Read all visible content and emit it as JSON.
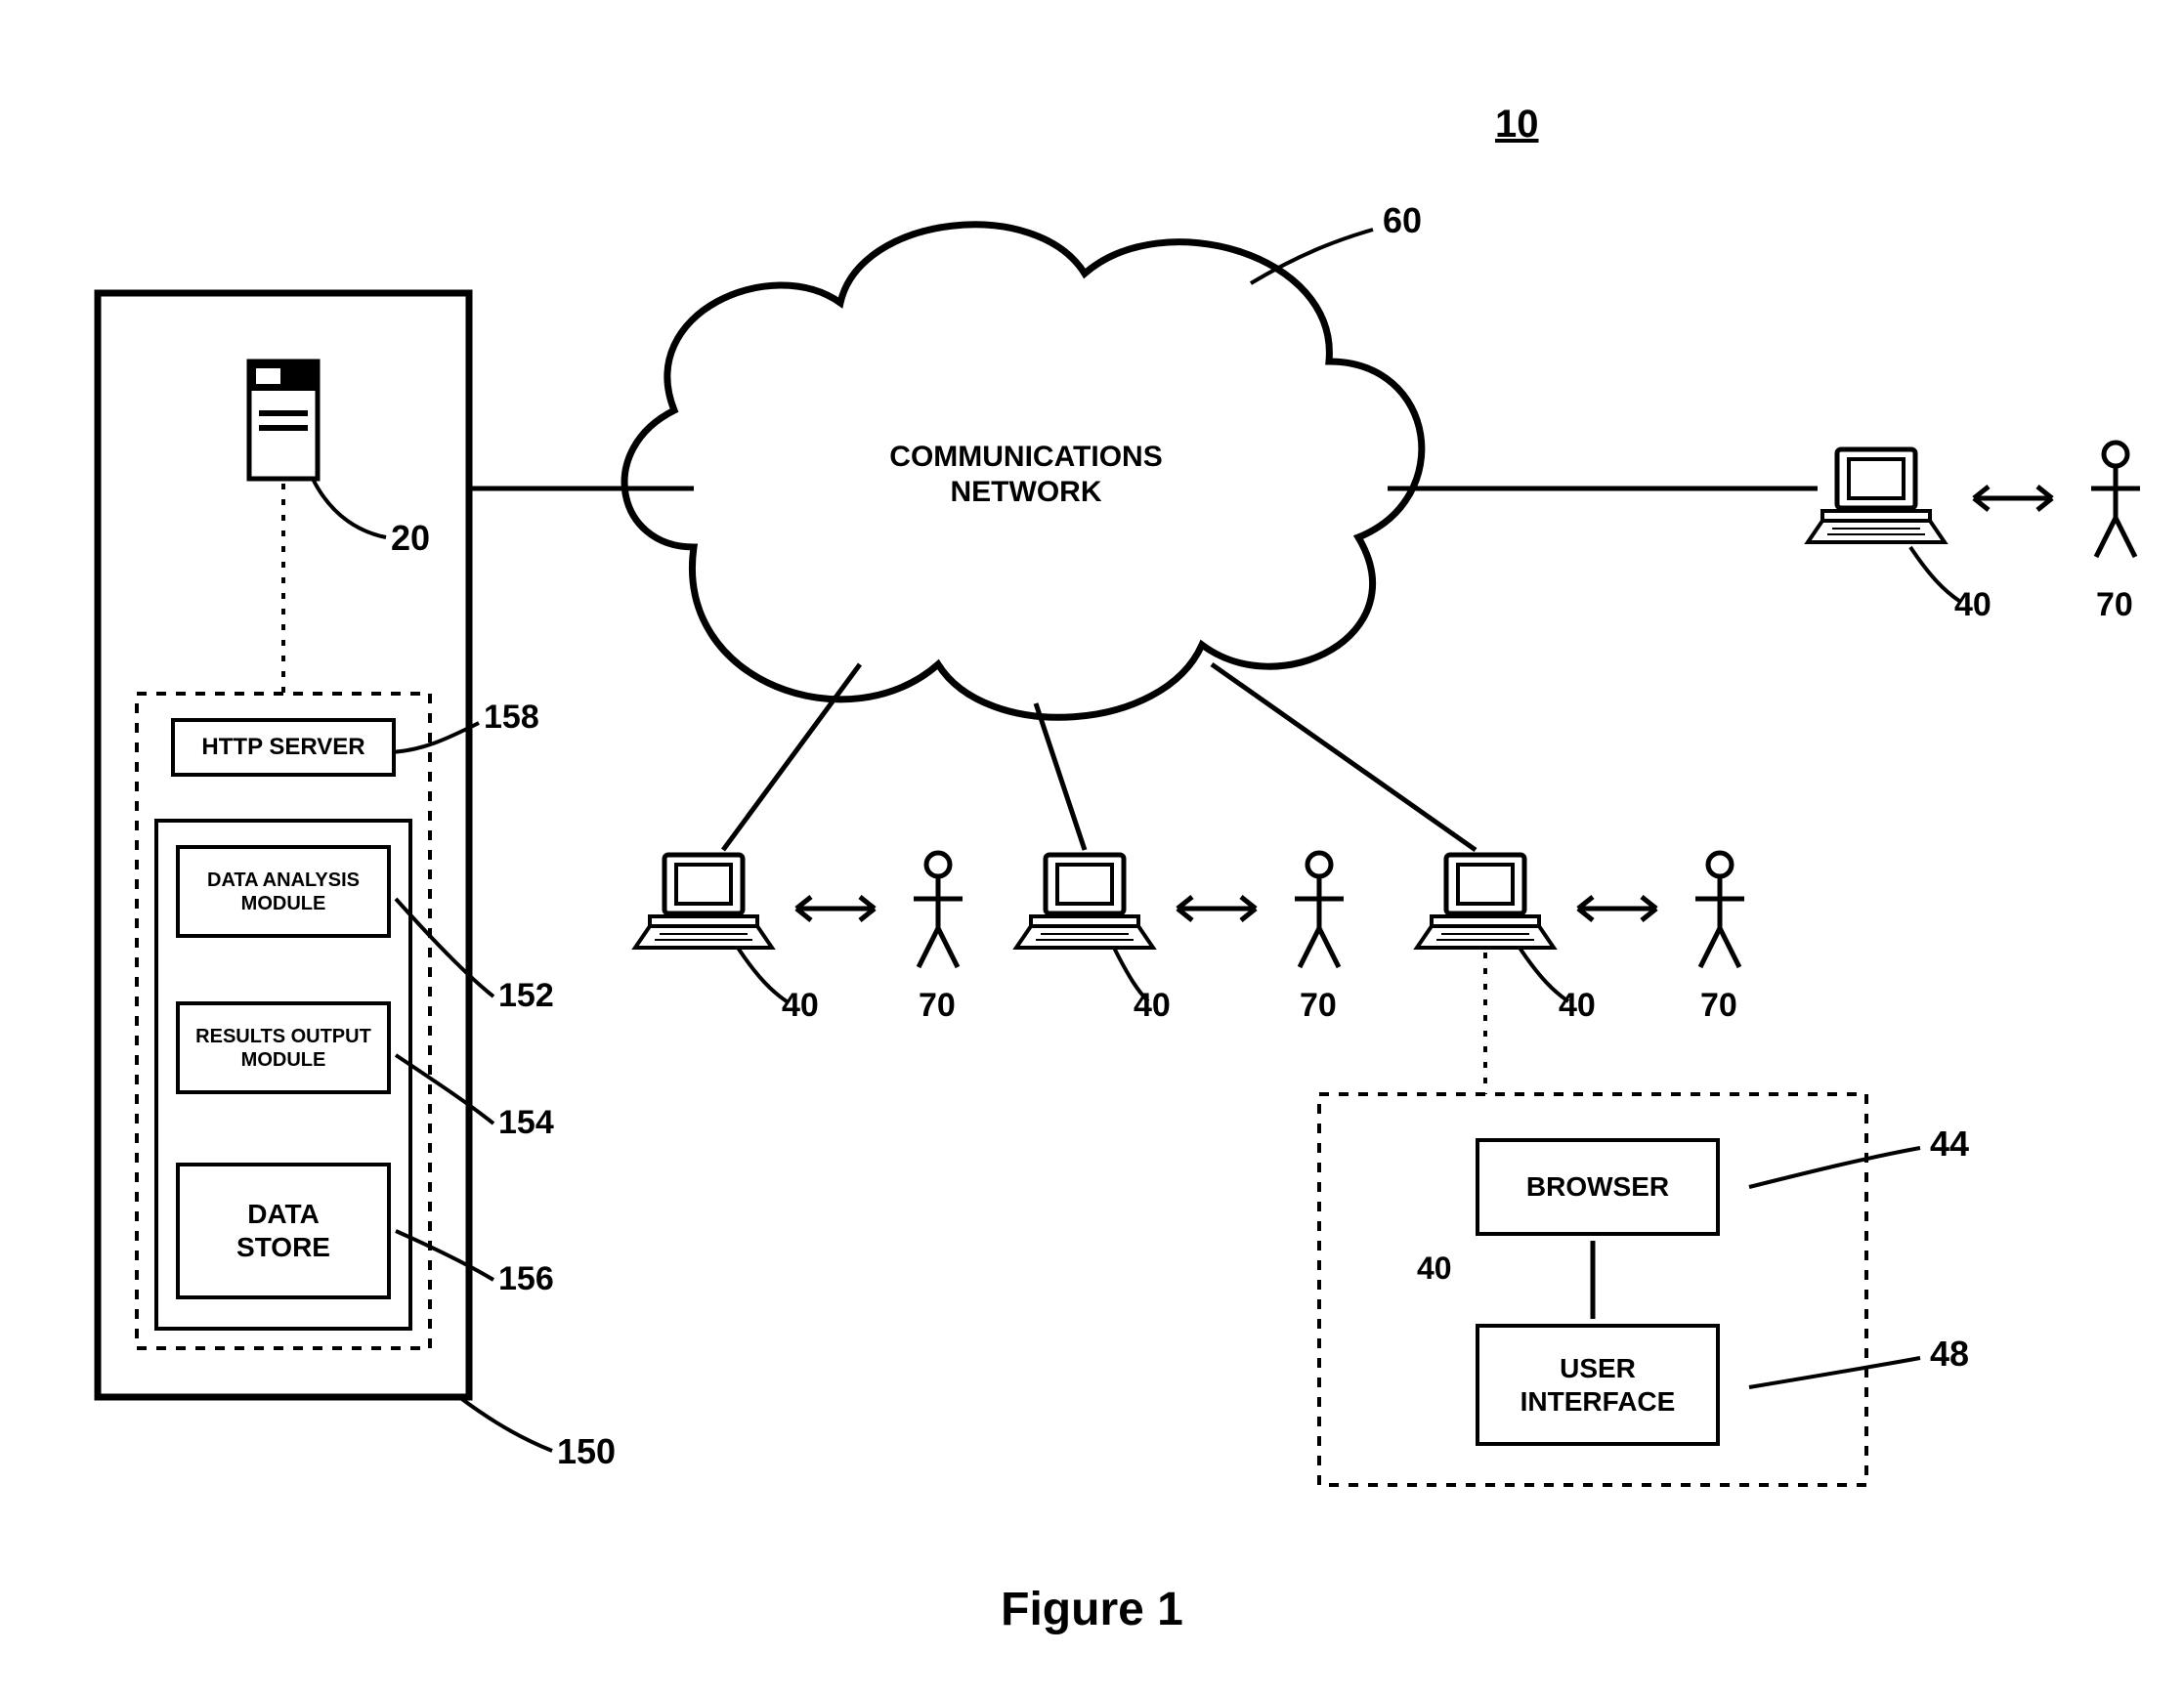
{
  "figure_label": "Figure 1",
  "figure_label_fontsize": 48,
  "ref_main": "10",
  "label_fontsize": 34,
  "small_label_fontsize": 24,
  "colors": {
    "stroke": "#000000",
    "bg": "#ffffff"
  },
  "cloud": {
    "text": "COMMUNICATIONS\nNETWORK",
    "ref": "60",
    "fontsize": 30
  },
  "server_box": {
    "ref_outer": "150",
    "ref_server": "20",
    "http": {
      "text": "HTTP SERVER",
      "ref": "158",
      "fontsize": 24
    },
    "data_analysis": {
      "text": "DATA ANALYSIS\nMODULE",
      "ref": "152",
      "fontsize": 20
    },
    "results": {
      "text": "RESULTS OUTPUT\nMODULE",
      "ref": "154",
      "fontsize": 20
    },
    "data_store": {
      "text": "DATA\nSTORE",
      "ref": "156",
      "fontsize": 28
    }
  },
  "clients": {
    "computer_ref": "40",
    "user_ref": "70"
  },
  "client_detail": {
    "browser": {
      "text": "BROWSER",
      "ref": "44",
      "fontsize": 28
    },
    "ui": {
      "text": "USER\nINTERFACE",
      "ref": "48",
      "fontsize": 28
    },
    "ref_inside": "40"
  }
}
